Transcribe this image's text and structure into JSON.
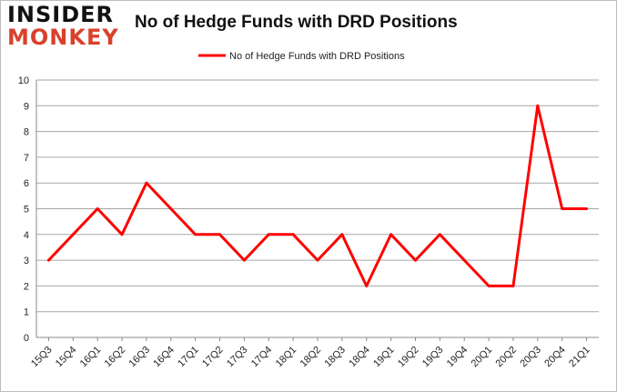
{
  "logo": {
    "line1": "INSIDER",
    "line2": "MONKEY"
  },
  "chart_data": {
    "type": "line",
    "title": "No of Hedge Funds with DRD Positions",
    "xlabel": "",
    "ylabel": "",
    "ylim": [
      0,
      10
    ],
    "yticks": [
      0,
      1,
      2,
      3,
      4,
      5,
      6,
      7,
      8,
      9,
      10
    ],
    "grid": true,
    "legend_placement": "top-center",
    "categories": [
      "15Q3",
      "15Q4",
      "16Q1",
      "16Q2",
      "16Q3",
      "16Q4",
      "17Q1",
      "17Q2",
      "17Q3",
      "17Q4",
      "18Q1",
      "18Q2",
      "18Q3",
      "18Q4",
      "19Q1",
      "19Q2",
      "19Q3",
      "19Q4",
      "20Q1",
      "20Q2",
      "20Q3",
      "20Q4",
      "21Q1"
    ],
    "series": [
      {
        "name": "No of Hedge Funds with DRD Positions",
        "color": "#ff0000",
        "values": [
          3,
          4,
          5,
          4,
          6,
          5,
          4,
          4,
          3,
          4,
          4,
          3,
          4,
          2,
          4,
          3,
          4,
          3,
          2,
          2,
          9,
          5,
          5
        ]
      }
    ]
  }
}
